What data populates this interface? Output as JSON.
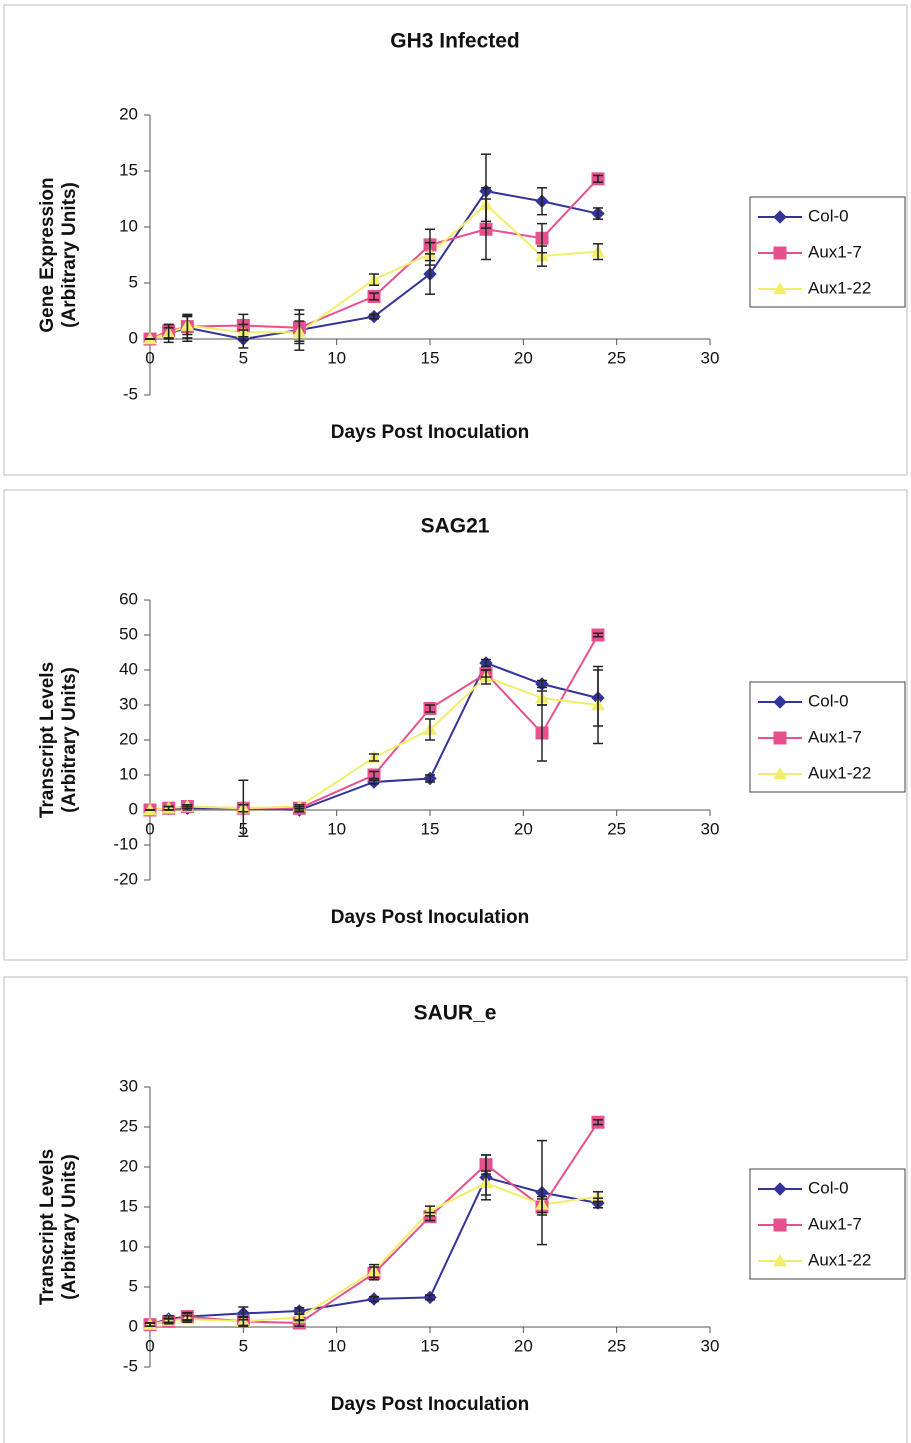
{
  "chart_data": [
    {
      "type": "line",
      "title": "GH3 Infected",
      "xlabel": "Days Post Inoculation",
      "ylabel": [
        "Gene Expression",
        "(Arbitrary Units)"
      ],
      "x": [
        0,
        1,
        2,
        5,
        8,
        12,
        15,
        18,
        21,
        24
      ],
      "xlim": [
        0,
        30
      ],
      "xticks": [
        0,
        5,
        10,
        15,
        20,
        25,
        30
      ],
      "ylim": [
        -5,
        20
      ],
      "yticks": [
        -5,
        0,
        5,
        10,
        15,
        20
      ],
      "series": [
        {
          "name": "Col-0",
          "color": "#333399",
          "marker": "diamond",
          "values": [
            0,
            0.5,
            1,
            0,
            0.8,
            2,
            5.8,
            13.2,
            12.3,
            11.2
          ],
          "errors": [
            0,
            0.8,
            1.2,
            0.8,
            1.8,
            0.2,
            1.8,
            3.3,
            1.2,
            0.5
          ]
        },
        {
          "name": "Aux1-7",
          "color": "#e6508c",
          "marker": "square",
          "values": [
            0,
            0.7,
            1.1,
            1.2,
            1.0,
            3.8,
            8.4,
            9.8,
            9.0,
            14.3
          ],
          "errors": [
            0,
            0.6,
            1.0,
            1.0,
            1.2,
            0.3,
            1.4,
            2.7,
            1.3,
            0.3
          ]
        },
        {
          "name": "Aux1-22",
          "color": "#f2ee6a",
          "marker": "triangle",
          "values": [
            0,
            0.5,
            1.2,
            0.6,
            0.6,
            5.3,
            7.6,
            12.0,
            7.4,
            7.8
          ],
          "errors": [
            0,
            0.5,
            0.8,
            0.7,
            1.0,
            0.5,
            1.0,
            1.5,
            0.9,
            0.7
          ]
        }
      ]
    },
    {
      "type": "line",
      "title": "SAG21",
      "xlabel": "Days Post Inoculation",
      "ylabel": [
        "Transcript Levels",
        "(Arbitrary Units)"
      ],
      "x": [
        0,
        1,
        2,
        5,
        8,
        12,
        15,
        18,
        21,
        24
      ],
      "xlim": [
        0,
        30
      ],
      "xticks": [
        0,
        5,
        10,
        15,
        20,
        25,
        30
      ],
      "ylim": [
        -20,
        60
      ],
      "yticks": [
        -20,
        -10,
        0,
        10,
        20,
        30,
        40,
        50,
        60
      ],
      "series": [
        {
          "name": "Col-0",
          "color": "#333399",
          "marker": "diamond",
          "values": [
            0,
            0.5,
            0.5,
            0.5,
            0,
            8,
            9,
            42,
            36,
            32
          ],
          "errors": [
            0,
            0.5,
            0.5,
            8,
            0.5,
            0.5,
            1,
            1,
            1,
            8
          ]
        },
        {
          "name": "Aux1-7",
          "color": "#e6508c",
          "marker": "square",
          "values": [
            0,
            0.5,
            1,
            0.5,
            0.5,
            10,
            29,
            39,
            22,
            50
          ],
          "errors": [
            0,
            0.5,
            0.5,
            1,
            0.5,
            1,
            1,
            1,
            8,
            0.5
          ]
        },
        {
          "name": "Aux1-22",
          "color": "#f2ee6a",
          "marker": "triangle",
          "values": [
            0,
            0.5,
            1,
            0.5,
            1,
            15,
            23,
            38,
            32,
            30
          ],
          "errors": [
            0,
            0.5,
            0.5,
            1,
            0.5,
            1,
            3,
            2,
            2,
            11
          ]
        }
      ]
    },
    {
      "type": "line",
      "title": "SAUR_e",
      "xlabel": "Days Post Inoculation",
      "ylabel": [
        "Transcript Levels",
        "(Arbitrary Units)"
      ],
      "x": [
        0,
        1,
        2,
        5,
        8,
        12,
        15,
        18,
        21,
        24
      ],
      "xlim": [
        0,
        30
      ],
      "xticks": [
        0,
        5,
        10,
        15,
        20,
        25,
        30
      ],
      "ylim": [
        -5,
        30
      ],
      "yticks": [
        -5,
        0,
        5,
        10,
        15,
        20,
        25,
        30
      ],
      "series": [
        {
          "name": "Col-0",
          "color": "#333399",
          "marker": "diamond",
          "values": [
            0.3,
            1,
            1.3,
            1.7,
            2,
            3.5,
            3.7,
            18.7,
            16.8,
            15.5
          ],
          "errors": [
            0.2,
            0.4,
            0.4,
            0.8,
            0.4,
            0.3,
            0.3,
            2.8,
            6.5,
            0.6
          ]
        },
        {
          "name": "Aux1-7",
          "color": "#e6508c",
          "marker": "square",
          "values": [
            0.3,
            0.7,
            1.3,
            0.7,
            0.5,
            6.7,
            13.8,
            20.3,
            15,
            25.6
          ],
          "errors": [
            0.2,
            0.3,
            0.5,
            0.5,
            0.4,
            0.8,
            0.5,
            1.2,
            1,
            0.3
          ]
        },
        {
          "name": "Aux1-22",
          "color": "#f2ee6a",
          "marker": "triangle",
          "values": [
            0.3,
            0.8,
            1,
            0.7,
            1.2,
            7,
            14.5,
            18,
            15.3,
            16.3
          ],
          "errors": [
            0.2,
            0.3,
            0.4,
            0.6,
            0.4,
            0.8,
            0.6,
            1.5,
            1,
            0.6
          ]
        }
      ]
    }
  ]
}
